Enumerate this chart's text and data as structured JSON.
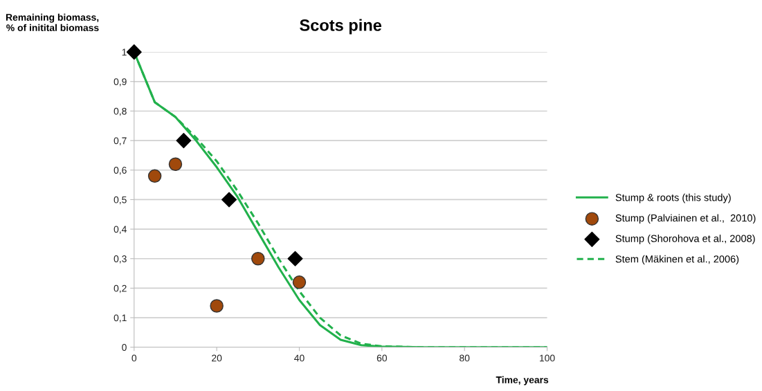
{
  "chart_data": {
    "type": "line",
    "title": "Scots pine",
    "xlabel": "Time, years",
    "ylabel": "Remaining biomass,\n% of initital biomass",
    "xlim": [
      0,
      100
    ],
    "xticks": [
      0,
      20,
      40,
      60,
      80,
      100
    ],
    "ylim": [
      0,
      1
    ],
    "yticks": [
      0,
      {
        "value": 0.1,
        "label": "0,1"
      },
      {
        "value": 0.2,
        "label": "0,2"
      },
      {
        "value": 0.3,
        "label": "0,3"
      },
      {
        "value": 0.4,
        "label": "0,4"
      },
      {
        "value": 0.5,
        "label": "0,5"
      },
      {
        "value": 0.6,
        "label": "0,6"
      },
      {
        "value": 0.7,
        "label": "0,7"
      },
      {
        "value": 0.8,
        "label": "0,8"
      },
      {
        "value": 0.9,
        "label": "0,9"
      },
      1
    ],
    "grid": "y",
    "legend": "right",
    "series": [
      {
        "name": "Stump & roots (this study)",
        "color": "#22b14c",
        "line_style": "solid",
        "x": [
          0,
          5,
          10,
          15,
          20,
          25,
          30,
          35,
          40,
          45,
          50,
          55,
          60,
          70,
          100
        ],
        "values": [
          1,
          0.83,
          0.78,
          0.7,
          0.61,
          0.51,
          0.39,
          0.27,
          0.16,
          0.075,
          0.025,
          0.007,
          0.002,
          0,
          0
        ]
      },
      {
        "name": "Stump (Palviainen et al.,  2010)",
        "type": "scatter",
        "color": "#a0490c",
        "marker": "circle",
        "x": [
          5,
          10,
          20,
          30,
          40
        ],
        "values": [
          0.58,
          0.62,
          0.14,
          0.3,
          0.22
        ]
      },
      {
        "name": "Stump (Shorohova et al., 2008)",
        "type": "scatter",
        "color": "#000000",
        "marker": "diamond",
        "x": [
          0,
          12,
          23,
          39
        ],
        "values": [
          1,
          0.7,
          0.5,
          0.3
        ]
      },
      {
        "name": "Stem (Mäkinen et al., 2006)",
        "color": "#22b14c",
        "line_style": "dashed",
        "x": [
          0,
          5,
          10,
          15,
          20,
          25,
          30,
          35,
          40,
          45,
          50,
          55,
          60,
          70,
          100
        ],
        "values": [
          1,
          0.83,
          0.78,
          0.71,
          0.63,
          0.53,
          0.42,
          0.3,
          0.19,
          0.1,
          0.04,
          0.012,
          0.003,
          0,
          0
        ]
      }
    ]
  }
}
